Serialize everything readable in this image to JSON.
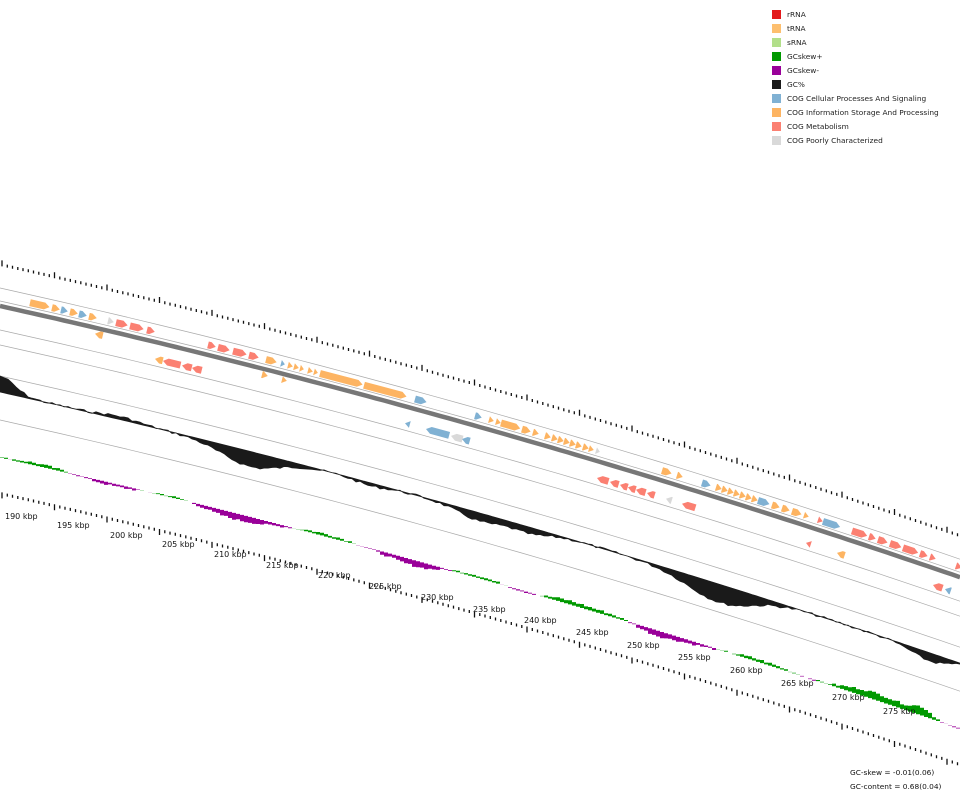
{
  "legend": [
    {
      "label": "rRNA",
      "color": "#e31a1c"
    },
    {
      "label": "tRNA",
      "color": "#fdbf6f"
    },
    {
      "label": "sRNA",
      "color": "#b2df8a"
    },
    {
      "label": "GCskew+",
      "color": "#009900"
    },
    {
      "label": "GCskew-",
      "color": "#990099"
    },
    {
      "label": "GC%",
      "color": "#1a1a1a"
    },
    {
      "label": "COG Cellular Processes And Signaling",
      "color": "#80b1d3"
    },
    {
      "label": "COG Information Storage And Processing",
      "color": "#fdb462"
    },
    {
      "label": "COG Metabolism",
      "color": "#fb8072"
    },
    {
      "label": "COG Poorly Characterized",
      "color": "#d9d9d9"
    }
  ],
  "scale": {
    "labels": [
      "190 kbp",
      "195 kbp",
      "200 kbp",
      "205 kbp",
      "210 kbp",
      "215 kbp",
      "220 kbp",
      "225 kbp",
      "230 kbp",
      "235 kbp",
      "240 kbp",
      "245 kbp",
      "250 kbp",
      "255 kbp",
      "260 kbp",
      "265 kbp",
      "270 kbp",
      "275 kbp"
    ]
  },
  "stats": {
    "gc_skew": "GC-skew = -0.01(0.06)",
    "gc_content": "GC-content = 0.68(0.04)"
  },
  "colors": {
    "info": "#fdb462",
    "cell": "#80b1d3",
    "meta": "#fb8072",
    "poor": "#d9d9d9",
    "gc": "#1a1a1a",
    "skewPlus": "#009900",
    "skewMinus": "#990099",
    "backbone": "#777777",
    "guide": "#aaaaaa",
    "tick": "#111111"
  }
}
